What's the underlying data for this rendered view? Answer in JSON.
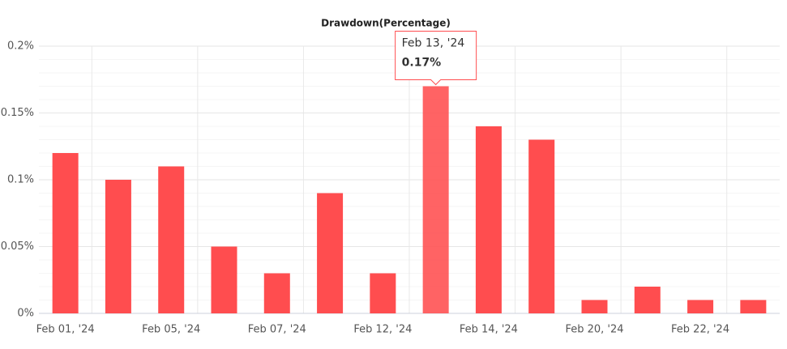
{
  "chart_data": {
    "type": "bar",
    "title": "Drawdown(Percentage)",
    "categories": [
      "Feb 01, '24",
      null,
      "Feb 05, '24",
      null,
      "Feb 07, '24",
      null,
      "Feb 12, '24",
      null,
      "Feb 14, '24",
      null,
      "Feb 20, '24",
      null,
      "Feb 22, '24",
      null
    ],
    "values": [
      0.12,
      0.1,
      0.11,
      0.05,
      0.03,
      0.09,
      0.03,
      0.17,
      0.14,
      0.13,
      0.01,
      0.02,
      0.01,
      0.01
    ],
    "color": "#ff4d4f",
    "ylim": [
      0,
      0.2
    ],
    "yticks": [
      {
        "value": 0,
        "label": "0%"
      },
      {
        "value": 0.05,
        "label": "0.05%"
      },
      {
        "value": 0.1,
        "label": "0.1%"
      },
      {
        "value": 0.15,
        "label": "0.15%"
      },
      {
        "value": 0.2,
        "label": "0.2%"
      }
    ],
    "grid": true,
    "tooltip": {
      "title": "Feb 13, '24",
      "value": {
        "value": 0.17,
        "label": "0.17%"
      }
    }
  }
}
